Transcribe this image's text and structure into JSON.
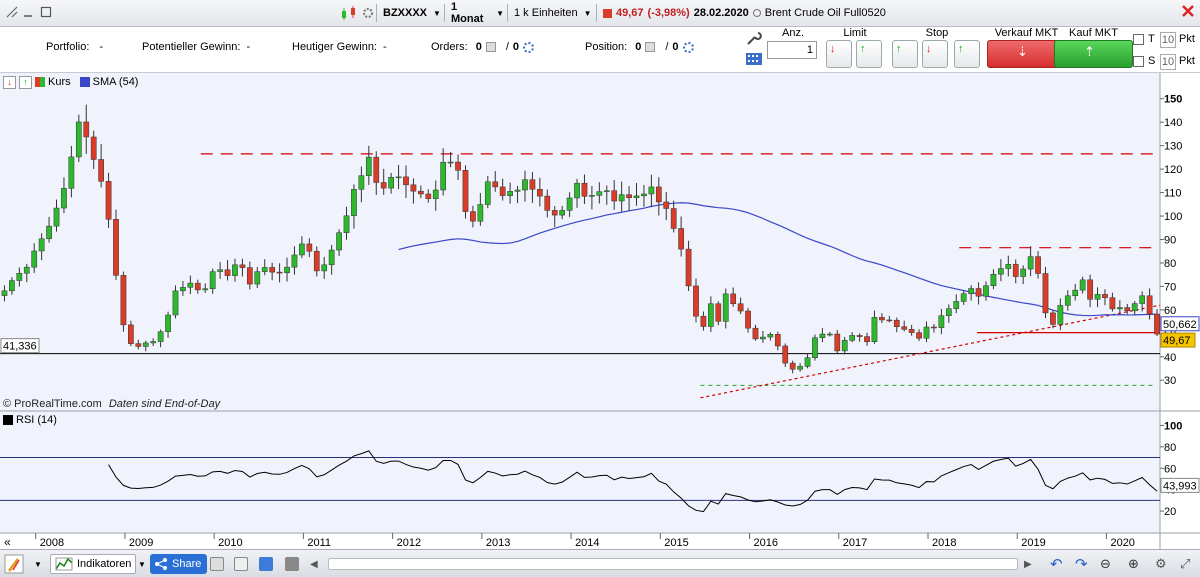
{
  "titlebar": {
    "symbol": "BZXXXX",
    "period": "1 Monat",
    "units": "1 k Einheiten",
    "price": "49,67",
    "change": "(-3,98%)",
    "date": "28.02.2020",
    "instrument": "Brent Crude Oil Full0520"
  },
  "orderbar": {
    "portfolio_label": "Portfolio:",
    "portfolio_value": "-",
    "pot_gain_label": "Potentieller Gewinn:",
    "pot_gain_value": "-",
    "today_gain_label": "Heutiger Gewinn:",
    "today_gain_value": "-",
    "orders_label": "Orders:",
    "orders_value1": "0",
    "orders_value2": "0",
    "orders_sep": "/",
    "position_label": "Position:",
    "position_value1": "0",
    "position_value2": "0",
    "position_sep": "/",
    "anz_label": "Anz.",
    "anz_value": "1",
    "limit_label": "Limit",
    "stop_label": "Stop",
    "sell_label": "Verkauf MKT",
    "buy_label": "Kauf MKT",
    "t_label": "T",
    "s_label": "S",
    "pkt_label1": "Pkt",
    "pkt_label2": "Pkt",
    "pkt_value1": "10",
    "pkt_value2": "10"
  },
  "legend": {
    "kurs": "Kurs",
    "sma": "SMA (54)",
    "rsi": "RSI (14)"
  },
  "watermark": {
    "brand": "© ProRealTime.com",
    "note": "Daten sind End-of-Day"
  },
  "bottombar": {
    "indicators": "Indikatoren",
    "share": "Share",
    "collapse": "«"
  },
  "colors": {
    "up": "#2db82d",
    "down": "#d93d2a",
    "sma": "#3a47c8",
    "rsi": "#000000",
    "resistance": "#d40000",
    "support": "#2aa02a",
    "price_tag": "#f5c400",
    "sma_tag_border": "#3a47c8",
    "panel_bg": "#eef1fb"
  },
  "chart_data": {
    "type": "candlestick",
    "title": "",
    "price_axis": {
      "ticks": [
        30,
        40,
        50,
        60,
        70,
        80,
        90,
        100,
        110,
        120,
        130,
        140,
        150
      ],
      "ylim": [
        22,
        155
      ]
    },
    "rsi_axis": {
      "ticks": [
        20,
        40,
        60,
        80,
        100
      ],
      "ylim": [
        7,
        106
      ],
      "levels": [
        70,
        30
      ]
    },
    "x_axis": {
      "years": [
        "2008",
        "2009",
        "2010",
        "2011",
        "2012",
        "2013",
        "2014",
        "2015",
        "2016",
        "2017",
        "2018",
        "2019",
        "2020"
      ],
      "start": 2007.6,
      "end": 2020.6
    },
    "series": [
      {
        "name": "Kurs",
        "kind": "candles",
        "ohlc_monthly_closes": [
          68.1,
          72.5,
          75.6,
          78.2,
          85.1,
          90.3,
          95.7,
          103.4,
          111.8,
          125.2,
          140.1,
          133.7,
          124.1,
          114.8,
          98.6,
          74.7,
          53.6,
          45.6,
          44.4,
          45.9,
          46.5,
          50.7,
          57.8,
          68.1,
          69.6,
          71.4,
          68.5,
          69.0,
          76.3,
          77.1,
          74.6,
          79.2,
          78.0,
          71.0,
          76.3,
          78.1,
          76.1,
          75.8,
          78.2,
          83.4,
          88.1,
          85.0,
          76.6,
          79.2,
          85.5,
          92.9,
          100.1,
          111.4,
          117.2,
          125.1,
          114.3,
          111.9,
          116.5,
          116.7,
          113.3,
          110.6,
          109.4,
          107.4,
          111.1,
          122.9,
          123.0,
          119.5,
          101.9,
          97.8,
          104.9,
          114.6,
          112.4,
          108.7,
          110.5,
          111.1,
          115.5,
          111.4,
          108.5,
          102.4,
          100.4,
          102.4,
          107.7,
          114.0,
          108.4,
          108.8,
          110.4,
          110.8,
          106.4,
          109.1,
          107.8,
          108.6,
          109.4,
          112.4,
          106.0,
          103.2,
          94.7,
          85.9,
          70.2,
          57.3,
          52.9,
          62.6,
          55.1,
          66.8,
          62.6,
          59.5,
          52.2,
          47.6,
          48.4,
          49.6,
          44.6,
          37.3,
          34.7,
          35.9,
          39.6,
          48.1,
          49.7,
          49.7,
          42.5,
          47.0,
          49.1,
          48.6,
          46.4,
          56.8,
          55.7,
          55.6,
          52.8,
          51.7,
          50.3,
          47.9,
          52.7,
          52.4,
          57.5,
          60.5,
          63.6,
          66.9,
          69.1,
          65.8,
          70.3,
          75.2,
          77.6,
          79.4,
          74.2,
          77.4,
          82.7,
          75.5,
          58.7,
          53.8,
          61.9,
          66.0,
          68.4,
          72.8,
          64.5,
          66.6,
          65.2,
          60.4,
          61.0,
          59.6,
          62.7,
          66.0,
          58.2,
          49.67
        ]
      },
      {
        "name": "SMA (54)",
        "kind": "line",
        "last": 50.662
      },
      {
        "name": "RSI (14)",
        "kind": "line",
        "last": 43.993
      }
    ],
    "price_tags": {
      "last": "49,67",
      "sma": "50,662",
      "level_left": "41,336",
      "rsi_last": "43,993"
    },
    "levels": {
      "resistance_upper": 126.5,
      "resistance_lower": 86.5,
      "support_horizontal": 41.336,
      "support_green": 27.8
    },
    "trendline": {
      "from": [
        2015.45,
        22.5
      ],
      "to": [
        2020.6,
        62.0
      ]
    }
  }
}
